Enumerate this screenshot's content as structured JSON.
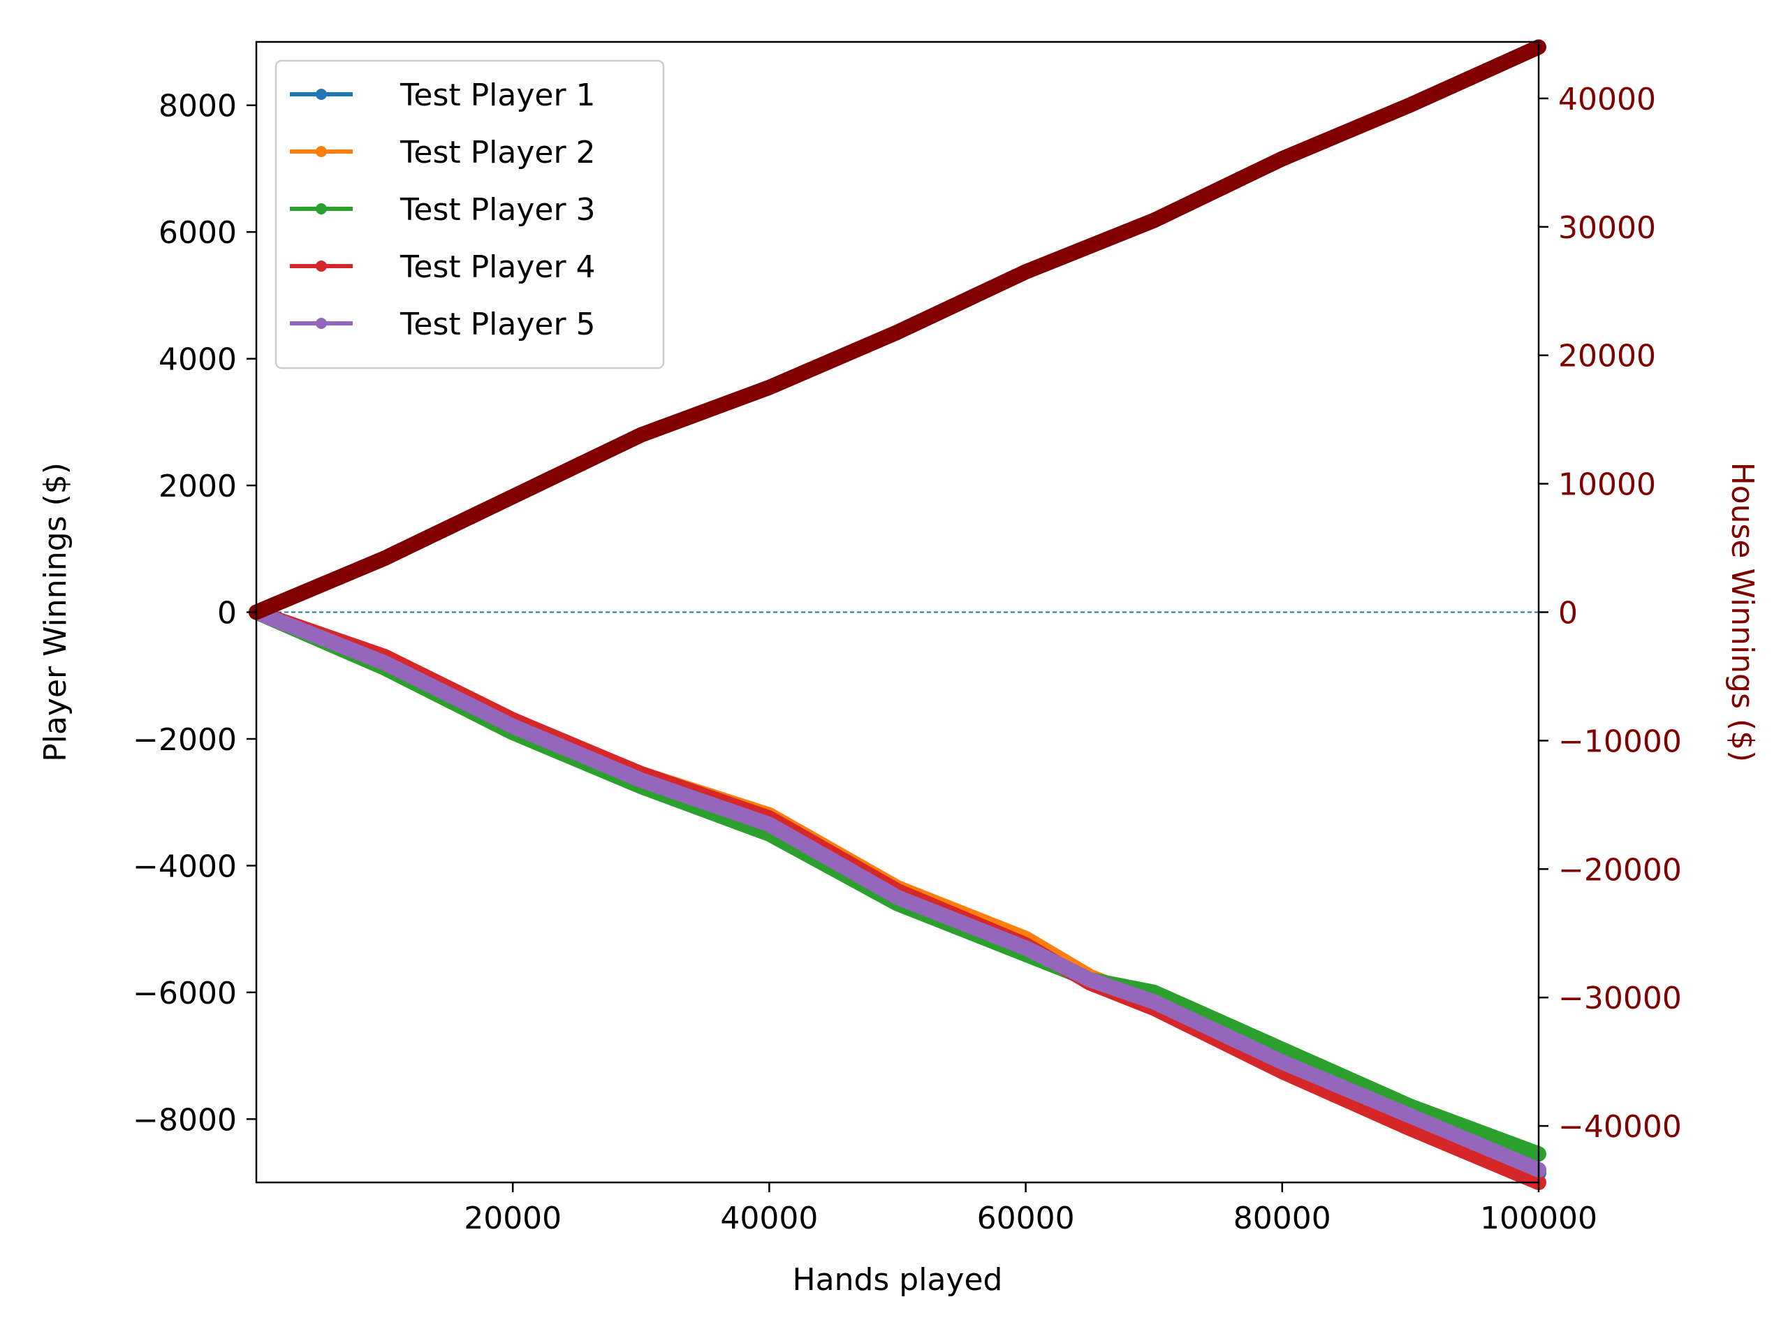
{
  "chart_data": {
    "type": "line",
    "xlabel": "Hands played",
    "ylabel_left": "Player Winnings ($)",
    "ylabel_right": "House Winnings ($)",
    "xlim": [
      0,
      100000
    ],
    "ylim_left": [
      -9000,
      9000
    ],
    "ylim_right": [
      -44400,
      44400
    ],
    "x_ticks": [
      20000,
      40000,
      60000,
      80000,
      100000
    ],
    "y_ticks_left": [
      8000,
      6000,
      4000,
      2000,
      0,
      -2000,
      -4000,
      -6000,
      -8000
    ],
    "y_ticks_right": [
      40000,
      30000,
      20000,
      10000,
      0,
      -10000,
      -20000,
      -30000,
      -40000
    ],
    "x_tick_labels": [
      "20000",
      "40000",
      "60000",
      "80000",
      "100000"
    ],
    "y_tick_labels_left": [
      "8000",
      "6000",
      "4000",
      "2000",
      "0",
      "−2000",
      "−4000",
      "−6000",
      "−8000"
    ],
    "y_tick_labels_right": [
      "40000",
      "30000",
      "20000",
      "10000",
      "0",
      "−10000",
      "−20000",
      "−30000",
      "−40000"
    ],
    "reference_line": {
      "y": 0,
      "style": "dashed",
      "color": "#1f77b4"
    },
    "legend_position": "top-left",
    "series": [
      {
        "name": "Test Player 1",
        "color": "#1f77b4",
        "axis": "left",
        "x": [
          0,
          10000,
          20000,
          30000,
          40000,
          50000,
          60000,
          65000,
          70000,
          80000,
          90000,
          100000
        ],
        "values": [
          0,
          -780,
          -1800,
          -2650,
          -3350,
          -4500,
          -5350,
          -5800,
          -6200,
          -7150,
          -8000,
          -8850
        ]
      },
      {
        "name": "Test Player 2",
        "color": "#ff7f0e",
        "axis": "left",
        "x": [
          0,
          10000,
          20000,
          30000,
          40000,
          50000,
          60000,
          65000,
          70000,
          80000,
          90000,
          100000
        ],
        "values": [
          0,
          -750,
          -1780,
          -2550,
          -3200,
          -4350,
          -5150,
          -5750,
          -6150,
          -7100,
          -7950,
          -8800
        ]
      },
      {
        "name": "Test Player 3",
        "color": "#2ca02c",
        "axis": "left",
        "x": [
          0,
          10000,
          20000,
          30000,
          40000,
          50000,
          60000,
          65000,
          70000,
          80000,
          90000,
          100000
        ],
        "values": [
          0,
          -880,
          -1900,
          -2750,
          -3500,
          -4600,
          -5400,
          -5800,
          -6000,
          -6900,
          -7800,
          -8550
        ]
      },
      {
        "name": "Test Player 4",
        "color": "#d62728",
        "axis": "left",
        "x": [
          0,
          10000,
          20000,
          30000,
          40000,
          50000,
          60000,
          65000,
          70000,
          80000,
          90000,
          100000
        ],
        "values": [
          0,
          -700,
          -1700,
          -2550,
          -3250,
          -4400,
          -5250,
          -5850,
          -6250,
          -7250,
          -8150,
          -9000
        ]
      },
      {
        "name": "Test Player 5",
        "color": "#9467bd",
        "axis": "left",
        "x": [
          0,
          10000,
          20000,
          30000,
          40000,
          50000,
          60000,
          65000,
          70000,
          80000,
          90000,
          100000
        ],
        "values": [
          0,
          -800,
          -1800,
          -2650,
          -3350,
          -4500,
          -5300,
          -5800,
          -6150,
          -7100,
          -7950,
          -8800
        ]
      },
      {
        "name": "House",
        "color": "#800000",
        "axis": "right",
        "in_legend": false,
        "x": [
          0,
          10000,
          20000,
          30000,
          40000,
          50000,
          60000,
          70000,
          80000,
          90000,
          100000
        ],
        "values": [
          0,
          4200,
          9000,
          13800,
          17500,
          21800,
          26500,
          30500,
          35300,
          39500,
          44000
        ]
      }
    ]
  }
}
